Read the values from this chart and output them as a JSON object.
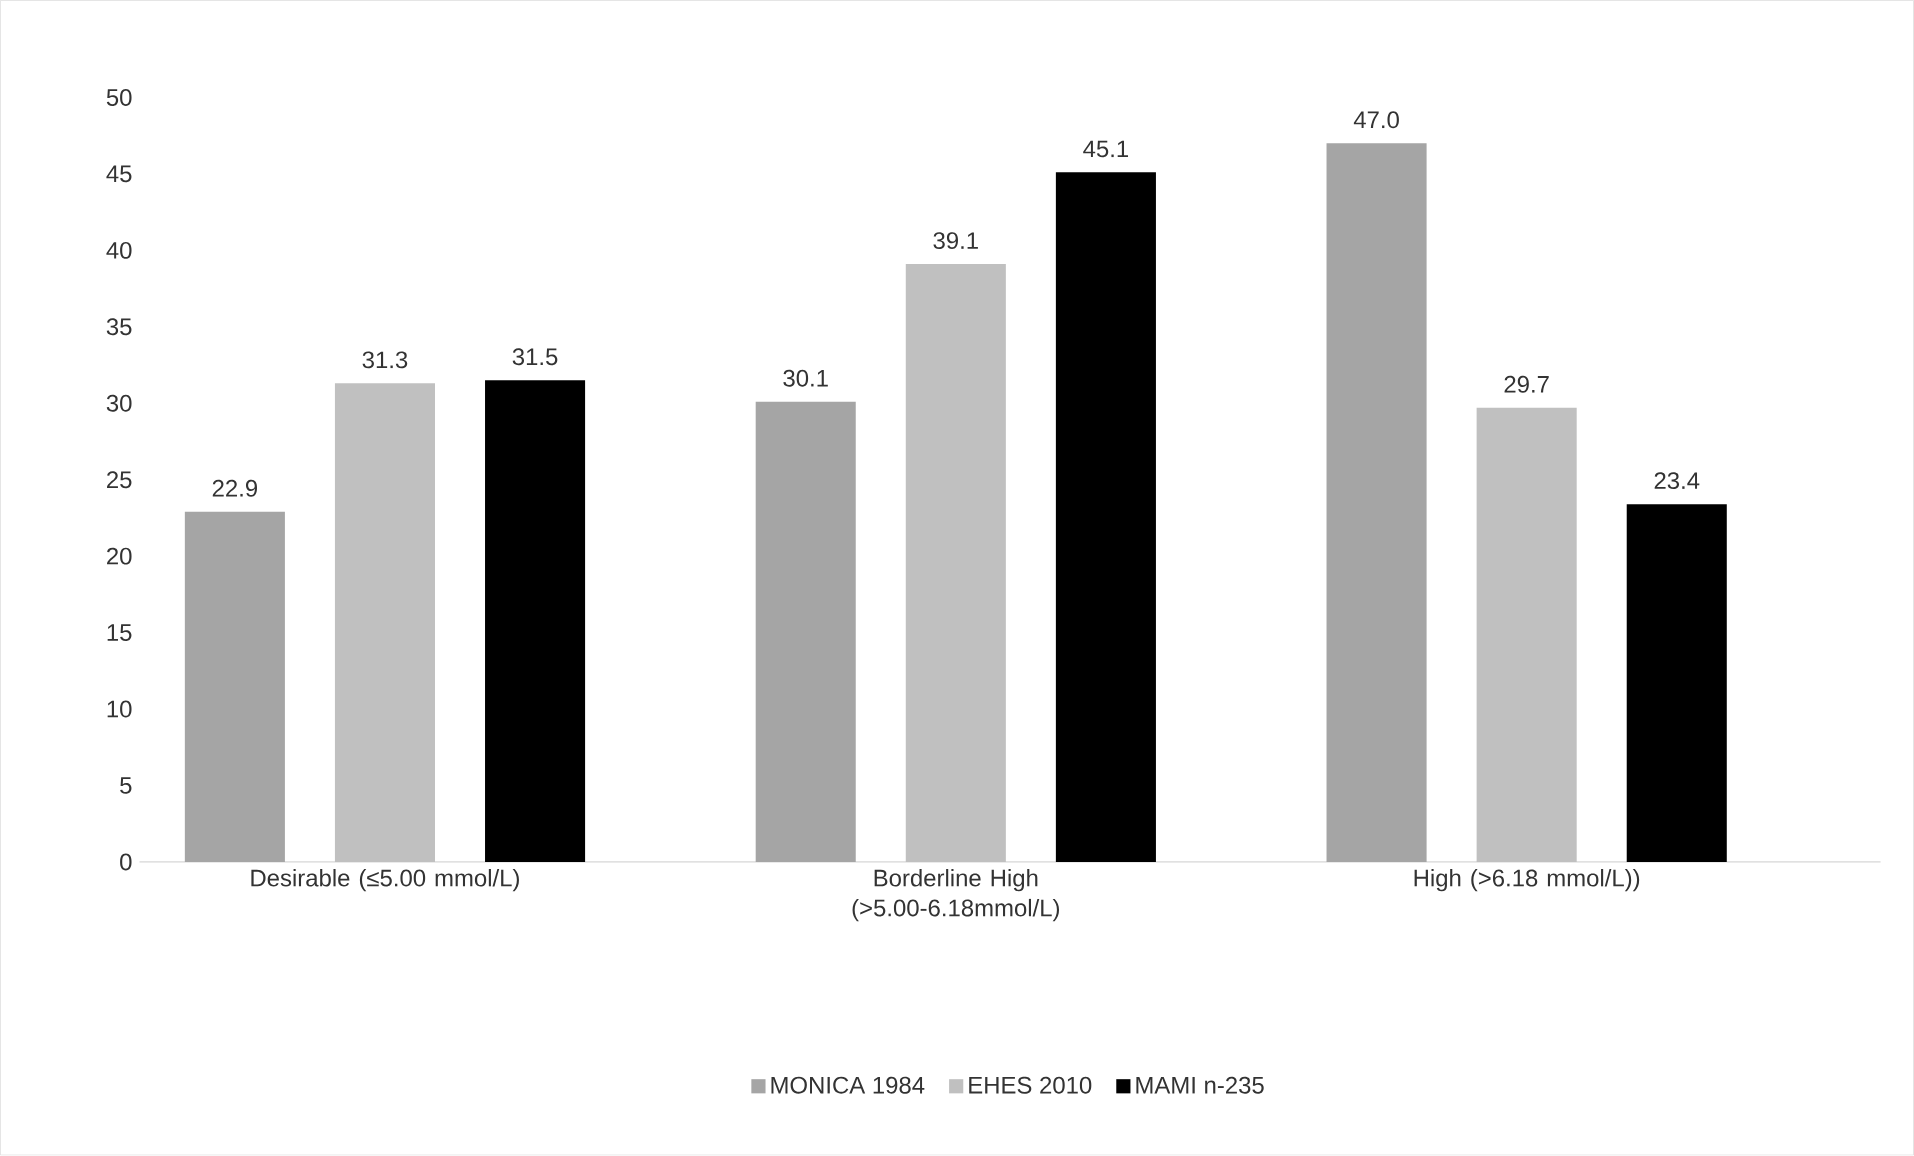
{
  "chart_data": {
    "type": "bar",
    "categories": [
      "Desirable (≤5.00 mmol/L)",
      "Borderline High (>5.00-6.18mmol/L)",
      "High (>6.18 mmol/L))"
    ],
    "series": [
      {
        "name": "MONICA 1984",
        "color": "#a5a5a5",
        "values": [
          22.9,
          30.1,
          47.0
        ],
        "value_labels": [
          "22.9",
          "30.1",
          "47.0"
        ]
      },
      {
        "name": "EHES 2010",
        "color": "#c0c0c0",
        "values": [
          31.3,
          39.1,
          29.7
        ],
        "value_labels": [
          "31.3",
          "39.1",
          "29.7"
        ]
      },
      {
        "name": "MAMI n-235",
        "color": "#000000",
        "values": [
          31.5,
          45.1,
          23.4
        ],
        "value_labels": [
          "31.5",
          "45.1",
          "23.4"
        ]
      }
    ],
    "ylim": [
      0,
      50
    ],
    "yticks": [
      0,
      5,
      10,
      15,
      20,
      25,
      30,
      35,
      40,
      45,
      50
    ],
    "legend": "bottom",
    "grid": false
  }
}
